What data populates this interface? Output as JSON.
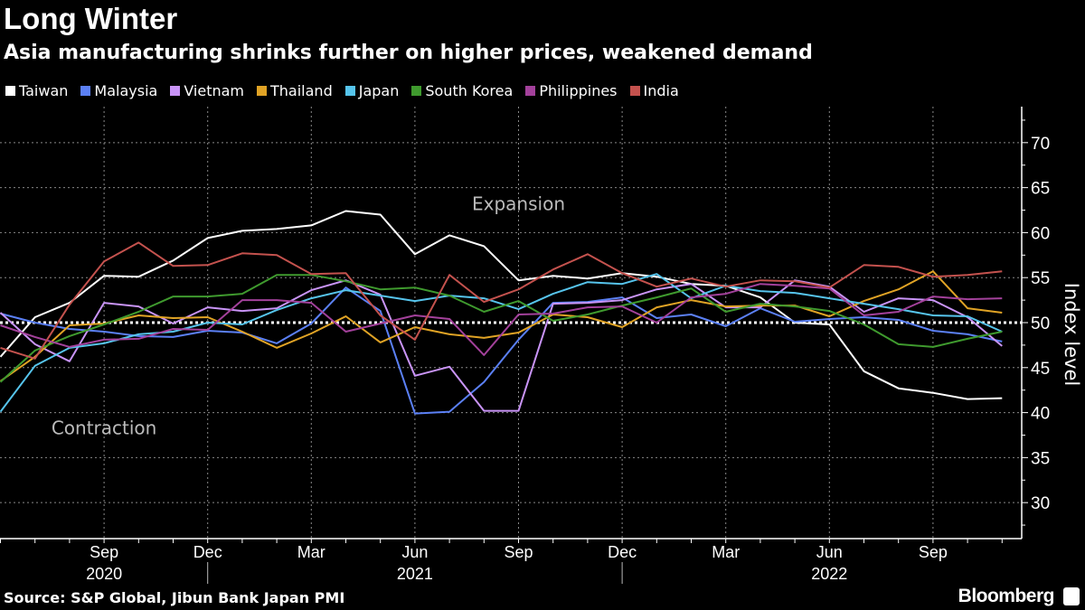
{
  "title": "Long Winter",
  "subtitle": "Asia manufacturing shrinks further on higher prices, weakened demand",
  "source": "Source: S&P Global, Jibun Bank Japan PMI",
  "brand": "Bloomberg",
  "chart_data": {
    "type": "line",
    "title": "Long Winter",
    "ylabel": "Index level",
    "ylim": [
      26,
      74
    ],
    "yticks": [
      30,
      35,
      40,
      45,
      50,
      55,
      60,
      65,
      70
    ],
    "reference_line": 50,
    "grid": true,
    "legend_placement": "top",
    "annotations": [
      {
        "text": "Expansion",
        "x": "2021-09",
        "y": 63.2
      },
      {
        "text": "Contraction",
        "x": "2020-09",
        "y": 38.3
      }
    ],
    "x": [
      "2020-06",
      "2020-07",
      "2020-08",
      "2020-09",
      "2020-10",
      "2020-11",
      "2020-12",
      "2021-01",
      "2021-02",
      "2021-03",
      "2021-04",
      "2021-05",
      "2021-06",
      "2021-07",
      "2021-08",
      "2021-09",
      "2021-10",
      "2021-11",
      "2021-12",
      "2022-01",
      "2022-02",
      "2022-03",
      "2022-04",
      "2022-05",
      "2022-06",
      "2022-07",
      "2022-08",
      "2022-09",
      "2022-10",
      "2022-11"
    ],
    "xtick_labels": [
      {
        "x": "2020-09",
        "label": "Sep"
      },
      {
        "x": "2020-12",
        "label": "Dec"
      },
      {
        "x": "2021-03",
        "label": "Mar"
      },
      {
        "x": "2021-06",
        "label": "Jun"
      },
      {
        "x": "2021-09",
        "label": "Sep"
      },
      {
        "x": "2021-12",
        "label": "Dec"
      },
      {
        "x": "2022-03",
        "label": "Mar"
      },
      {
        "x": "2022-06",
        "label": "Jun"
      },
      {
        "x": "2022-09",
        "label": "Sep"
      }
    ],
    "year_labels": [
      {
        "x": "2020-09",
        "label": "2020"
      },
      {
        "x": "2021-06",
        "label": "2021"
      },
      {
        "x": "2022-06",
        "label": "2022"
      }
    ],
    "series": [
      {
        "name": "Taiwan",
        "color": "#ffffff",
        "values": [
          46.2,
          50.6,
          52.2,
          55.2,
          55.1,
          56.9,
          59.4,
          60.2,
          60.4,
          60.8,
          62.4,
          62.0,
          57.6,
          59.7,
          58.5,
          54.7,
          55.2,
          54.9,
          55.5,
          55.1,
          54.3,
          54.1,
          52.8,
          50.0,
          49.8,
          44.6,
          42.7,
          42.2,
          41.5,
          41.6
        ]
      },
      {
        "name": "Malaysia",
        "color": "#5b80f5",
        "values": [
          51.0,
          50.0,
          49.3,
          49.0,
          48.5,
          48.4,
          49.1,
          48.9,
          47.7,
          49.9,
          53.9,
          51.3,
          39.9,
          40.1,
          43.4,
          48.1,
          52.2,
          52.3,
          52.8,
          50.5,
          50.9,
          49.6,
          51.6,
          50.1,
          50.4,
          50.6,
          50.3,
          49.1,
          48.7,
          47.9
        ]
      },
      {
        "name": "Vietnam",
        "color": "#c994f7",
        "values": [
          51.1,
          47.6,
          45.7,
          52.2,
          51.8,
          49.9,
          51.7,
          51.3,
          51.6,
          53.6,
          54.7,
          53.1,
          44.1,
          45.1,
          40.2,
          40.2,
          52.1,
          52.2,
          52.5,
          53.7,
          54.3,
          51.7,
          51.7,
          54.7,
          54.0,
          51.2,
          52.7,
          52.5,
          50.6,
          47.4
        ]
      },
      {
        "name": "Thailand",
        "color": "#e0a325",
        "values": [
          43.5,
          46.2,
          49.7,
          49.9,
          50.8,
          50.5,
          50.6,
          49.0,
          47.2,
          48.8,
          50.7,
          47.8,
          49.5,
          48.7,
          48.3,
          48.9,
          50.9,
          50.6,
          49.5,
          51.7,
          52.5,
          51.8,
          51.9,
          51.9,
          50.7,
          52.4,
          53.7,
          55.7,
          51.6,
          51.1
        ]
      },
      {
        "name": "Japan",
        "color": "#56c4ec",
        "values": [
          40.1,
          45.2,
          47.2,
          47.7,
          48.7,
          49.0,
          50.0,
          49.8,
          51.4,
          52.7,
          53.6,
          53.0,
          52.4,
          53.0,
          52.7,
          51.5,
          53.2,
          54.5,
          54.3,
          55.4,
          52.7,
          54.1,
          53.5,
          53.3,
          52.7,
          52.1,
          51.5,
          50.8,
          50.7,
          49.0
        ]
      },
      {
        "name": "South Korea",
        "color": "#3f9a2e",
        "values": [
          43.4,
          46.9,
          48.5,
          49.8,
          51.2,
          52.9,
          52.9,
          53.2,
          55.3,
          55.3,
          54.6,
          53.7,
          53.9,
          53.0,
          51.2,
          52.4,
          50.2,
          50.9,
          51.9,
          52.8,
          53.8,
          51.2,
          52.1,
          51.8,
          51.3,
          49.8,
          47.6,
          47.3,
          48.2,
          49.0
        ]
      },
      {
        "name": "Philippines",
        "color": "#a3419b",
        "values": [
          49.7,
          48.4,
          47.3,
          48.1,
          48.2,
          49.3,
          49.2,
          52.5,
          52.5,
          52.2,
          49.0,
          49.9,
          50.8,
          50.4,
          46.4,
          50.9,
          51.0,
          51.7,
          51.8,
          50.0,
          52.8,
          53.2,
          54.3,
          54.1,
          53.8,
          50.8,
          51.2,
          52.9,
          52.6,
          52.7
        ]
      },
      {
        "name": "India",
        "color": "#c4524e",
        "values": [
          47.2,
          46.0,
          52.0,
          56.8,
          58.9,
          56.3,
          56.4,
          57.7,
          57.5,
          55.4,
          55.5,
          50.8,
          48.1,
          55.3,
          52.3,
          53.7,
          55.9,
          57.6,
          55.5,
          54.0,
          54.9,
          54.0,
          54.7,
          54.6,
          53.9,
          56.4,
          56.2,
          55.1,
          55.3,
          55.7
        ]
      }
    ]
  }
}
